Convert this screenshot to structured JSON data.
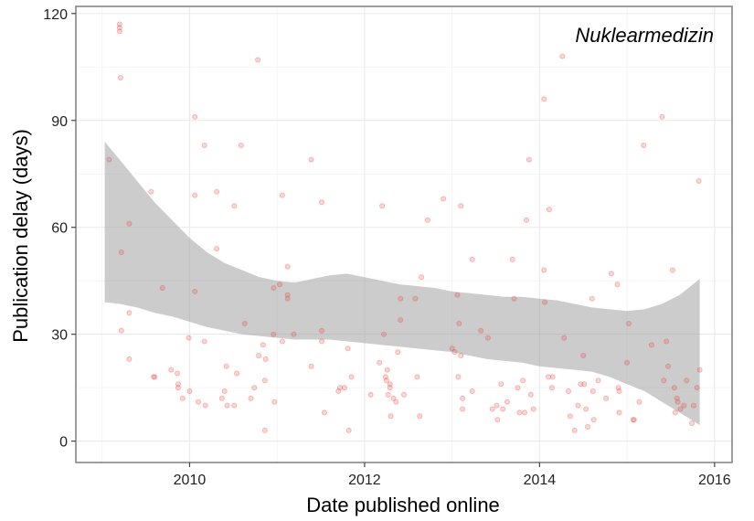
{
  "chart_data": {
    "type": "scatter",
    "title": "Nuklearmedizin",
    "xlabel": "Date published online",
    "ylabel": "Publication delay (days)",
    "xlim": [
      2008.7,
      2016.2
    ],
    "ylim": [
      -6,
      122
    ],
    "x_ticks": [
      2010,
      2012,
      2014,
      2016
    ],
    "x_tick_labels": [
      "2010",
      "2012",
      "2014",
      "2016"
    ],
    "y_ticks": [
      0,
      30,
      60,
      90,
      120
    ],
    "y_tick_labels": [
      "0",
      "30",
      "60",
      "90",
      "120"
    ],
    "grid": true,
    "point_color": "#e8403a",
    "band_color": "#999999",
    "points": [
      {
        "x": 2009.08,
        "y": 79
      },
      {
        "x": 2009.2,
        "y": 117
      },
      {
        "x": 2009.2,
        "y": 116
      },
      {
        "x": 2009.2,
        "y": 115
      },
      {
        "x": 2009.21,
        "y": 102
      },
      {
        "x": 2009.22,
        "y": 53
      },
      {
        "x": 2009.22,
        "y": 31
      },
      {
        "x": 2009.31,
        "y": 61
      },
      {
        "x": 2009.31,
        "y": 36
      },
      {
        "x": 2009.31,
        "y": 23
      },
      {
        "x": 2009.56,
        "y": 70
      },
      {
        "x": 2009.59,
        "y": 18
      },
      {
        "x": 2009.6,
        "y": 18
      },
      {
        "x": 2009.69,
        "y": 43
      },
      {
        "x": 2009.79,
        "y": 20
      },
      {
        "x": 2009.86,
        "y": 19
      },
      {
        "x": 2009.87,
        "y": 16
      },
      {
        "x": 2009.87,
        "y": 15
      },
      {
        "x": 2009.92,
        "y": 12
      },
      {
        "x": 2009.99,
        "y": 29
      },
      {
        "x": 2010.0,
        "y": 14
      },
      {
        "x": 2010.06,
        "y": 91
      },
      {
        "x": 2010.06,
        "y": 69
      },
      {
        "x": 2010.06,
        "y": 42
      },
      {
        "x": 2010.1,
        "y": 11
      },
      {
        "x": 2010.17,
        "y": 83
      },
      {
        "x": 2010.17,
        "y": 28
      },
      {
        "x": 2010.18,
        "y": 10
      },
      {
        "x": 2010.31,
        "y": 70
      },
      {
        "x": 2010.31,
        "y": 54
      },
      {
        "x": 2010.37,
        "y": 12
      },
      {
        "x": 2010.4,
        "y": 14
      },
      {
        "x": 2010.42,
        "y": 21
      },
      {
        "x": 2010.43,
        "y": 10
      },
      {
        "x": 2010.51,
        "y": 66
      },
      {
        "x": 2010.51,
        "y": 10
      },
      {
        "x": 2010.54,
        "y": 19
      },
      {
        "x": 2010.59,
        "y": 83
      },
      {
        "x": 2010.63,
        "y": 33
      },
      {
        "x": 2010.7,
        "y": 12
      },
      {
        "x": 2010.74,
        "y": 15
      },
      {
        "x": 2010.78,
        "y": 107
      },
      {
        "x": 2010.79,
        "y": 24
      },
      {
        "x": 2010.84,
        "y": 27
      },
      {
        "x": 2010.86,
        "y": 3
      },
      {
        "x": 2010.86,
        "y": 17
      },
      {
        "x": 2010.87,
        "y": 23
      },
      {
        "x": 2010.96,
        "y": 43
      },
      {
        "x": 2010.96,
        "y": 30
      },
      {
        "x": 2010.97,
        "y": 11
      },
      {
        "x": 2011.03,
        "y": 44
      },
      {
        "x": 2011.06,
        "y": 69
      },
      {
        "x": 2011.06,
        "y": 28
      },
      {
        "x": 2011.12,
        "y": 49
      },
      {
        "x": 2011.12,
        "y": 41
      },
      {
        "x": 2011.12,
        "y": 40
      },
      {
        "x": 2011.19,
        "y": 30
      },
      {
        "x": 2011.39,
        "y": 79
      },
      {
        "x": 2011.39,
        "y": 21
      },
      {
        "x": 2011.51,
        "y": 67
      },
      {
        "x": 2011.51,
        "y": 31
      },
      {
        "x": 2011.51,
        "y": 28
      },
      {
        "x": 2011.54,
        "y": 8
      },
      {
        "x": 2011.7,
        "y": 14
      },
      {
        "x": 2011.72,
        "y": 15
      },
      {
        "x": 2011.77,
        "y": 15
      },
      {
        "x": 2011.81,
        "y": 26
      },
      {
        "x": 2011.82,
        "y": 3
      },
      {
        "x": 2011.85,
        "y": 18
      },
      {
        "x": 2012.07,
        "y": 13
      },
      {
        "x": 2012.17,
        "y": 22
      },
      {
        "x": 2012.2,
        "y": 66
      },
      {
        "x": 2012.22,
        "y": 30
      },
      {
        "x": 2012.24,
        "y": 18
      },
      {
        "x": 2012.25,
        "y": 17
      },
      {
        "x": 2012.26,
        "y": 20
      },
      {
        "x": 2012.27,
        "y": 13
      },
      {
        "x": 2012.29,
        "y": 16
      },
      {
        "x": 2012.29,
        "y": 15
      },
      {
        "x": 2012.3,
        "y": 7
      },
      {
        "x": 2012.33,
        "y": 12
      },
      {
        "x": 2012.36,
        "y": 11
      },
      {
        "x": 2012.38,
        "y": 25
      },
      {
        "x": 2012.41,
        "y": 34
      },
      {
        "x": 2012.41,
        "y": 40
      },
      {
        "x": 2012.45,
        "y": 13
      },
      {
        "x": 2012.58,
        "y": 40
      },
      {
        "x": 2012.6,
        "y": 18
      },
      {
        "x": 2012.63,
        "y": 7
      },
      {
        "x": 2012.65,
        "y": 46
      },
      {
        "x": 2012.72,
        "y": 62
      },
      {
        "x": 2012.9,
        "y": 68
      },
      {
        "x": 2013.0,
        "y": 26
      },
      {
        "x": 2013.03,
        "y": 25
      },
      {
        "x": 2013.06,
        "y": 41
      },
      {
        "x": 2013.07,
        "y": 18
      },
      {
        "x": 2013.08,
        "y": 33
      },
      {
        "x": 2013.1,
        "y": 66
      },
      {
        "x": 2013.1,
        "y": 24
      },
      {
        "x": 2013.12,
        "y": 12
      },
      {
        "x": 2013.12,
        "y": 9
      },
      {
        "x": 2013.23,
        "y": 51
      },
      {
        "x": 2013.23,
        "y": 14
      },
      {
        "x": 2013.33,
        "y": 31
      },
      {
        "x": 2013.41,
        "y": 29
      },
      {
        "x": 2013.46,
        "y": 9
      },
      {
        "x": 2013.51,
        "y": 10
      },
      {
        "x": 2013.52,
        "y": 6
      },
      {
        "x": 2013.56,
        "y": 16
      },
      {
        "x": 2013.58,
        "y": 9
      },
      {
        "x": 2013.63,
        "y": 11
      },
      {
        "x": 2013.69,
        "y": 51
      },
      {
        "x": 2013.71,
        "y": 40
      },
      {
        "x": 2013.75,
        "y": 15
      },
      {
        "x": 2013.77,
        "y": 8
      },
      {
        "x": 2013.81,
        "y": 17
      },
      {
        "x": 2013.83,
        "y": 8
      },
      {
        "x": 2013.85,
        "y": 62
      },
      {
        "x": 2013.88,
        "y": 79
      },
      {
        "x": 2013.9,
        "y": 13
      },
      {
        "x": 2013.93,
        "y": 9
      },
      {
        "x": 2014.05,
        "y": 96
      },
      {
        "x": 2014.05,
        "y": 48
      },
      {
        "x": 2014.06,
        "y": 39
      },
      {
        "x": 2014.1,
        "y": 18
      },
      {
        "x": 2014.11,
        "y": 65
      },
      {
        "x": 2014.15,
        "y": 18
      },
      {
        "x": 2014.14,
        "y": 15
      },
      {
        "x": 2014.26,
        "y": 108
      },
      {
        "x": 2014.28,
        "y": 29
      },
      {
        "x": 2014.33,
        "y": 14
      },
      {
        "x": 2014.35,
        "y": 7
      },
      {
        "x": 2014.4,
        "y": 3
      },
      {
        "x": 2014.44,
        "y": 10
      },
      {
        "x": 2014.47,
        "y": 16
      },
      {
        "x": 2014.5,
        "y": 24
      },
      {
        "x": 2014.51,
        "y": 16
      },
      {
        "x": 2014.53,
        "y": 9
      },
      {
        "x": 2014.55,
        "y": 4
      },
      {
        "x": 2014.6,
        "y": 40
      },
      {
        "x": 2014.61,
        "y": 14
      },
      {
        "x": 2014.62,
        "y": 6
      },
      {
        "x": 2014.67,
        "y": 17
      },
      {
        "x": 2014.76,
        "y": 12
      },
      {
        "x": 2014.82,
        "y": 47
      },
      {
        "x": 2014.89,
        "y": 44
      },
      {
        "x": 2014.9,
        "y": 15
      },
      {
        "x": 2014.91,
        "y": 14
      },
      {
        "x": 2014.91,
        "y": 8
      },
      {
        "x": 2015.0,
        "y": 22
      },
      {
        "x": 2015.02,
        "y": 33
      },
      {
        "x": 2015.07,
        "y": 6
      },
      {
        "x": 2015.08,
        "y": 6
      },
      {
        "x": 2015.14,
        "y": 11
      },
      {
        "x": 2015.19,
        "y": 83
      },
      {
        "x": 2015.28,
        "y": 27
      },
      {
        "x": 2015.4,
        "y": 91
      },
      {
        "x": 2015.42,
        "y": 17
      },
      {
        "x": 2015.45,
        "y": 28
      },
      {
        "x": 2015.47,
        "y": 21
      },
      {
        "x": 2015.52,
        "y": 48
      },
      {
        "x": 2015.54,
        "y": 15
      },
      {
        "x": 2015.55,
        "y": 8
      },
      {
        "x": 2015.57,
        "y": 12
      },
      {
        "x": 2015.58,
        "y": 11
      },
      {
        "x": 2015.61,
        "y": 9
      },
      {
        "x": 2015.65,
        "y": 10
      },
      {
        "x": 2015.68,
        "y": 17
      },
      {
        "x": 2015.74,
        "y": 5
      },
      {
        "x": 2015.76,
        "y": 10
      },
      {
        "x": 2015.8,
        "y": 15
      },
      {
        "x": 2015.82,
        "y": 73
      },
      {
        "x": 2015.83,
        "y": 20
      }
    ],
    "band_upper": [
      {
        "x": 2009.03,
        "y": 84
      },
      {
        "x": 2009.2,
        "y": 79
      },
      {
        "x": 2009.4,
        "y": 73
      },
      {
        "x": 2009.6,
        "y": 67
      },
      {
        "x": 2009.8,
        "y": 62
      },
      {
        "x": 2010.0,
        "y": 57
      },
      {
        "x": 2010.2,
        "y": 53
      },
      {
        "x": 2010.4,
        "y": 50
      },
      {
        "x": 2010.6,
        "y": 48
      },
      {
        "x": 2010.8,
        "y": 46
      },
      {
        "x": 2011.0,
        "y": 45
      },
      {
        "x": 2011.2,
        "y": 44.5
      },
      {
        "x": 2011.4,
        "y": 45.5
      },
      {
        "x": 2011.6,
        "y": 46.5
      },
      {
        "x": 2011.8,
        "y": 47
      },
      {
        "x": 2012.0,
        "y": 46
      },
      {
        "x": 2012.2,
        "y": 45
      },
      {
        "x": 2012.4,
        "y": 44
      },
      {
        "x": 2012.6,
        "y": 43.5
      },
      {
        "x": 2012.8,
        "y": 43
      },
      {
        "x": 2013.0,
        "y": 42
      },
      {
        "x": 2013.2,
        "y": 41.5
      },
      {
        "x": 2013.4,
        "y": 41
      },
      {
        "x": 2013.6,
        "y": 40.5
      },
      {
        "x": 2013.8,
        "y": 40.5
      },
      {
        "x": 2014.0,
        "y": 40
      },
      {
        "x": 2014.2,
        "y": 39.5
      },
      {
        "x": 2014.4,
        "y": 38.5
      },
      {
        "x": 2014.6,
        "y": 37.5
      },
      {
        "x": 2014.8,
        "y": 37
      },
      {
        "x": 2015.0,
        "y": 36.5
      },
      {
        "x": 2015.2,
        "y": 37
      },
      {
        "x": 2015.4,
        "y": 38.5
      },
      {
        "x": 2015.6,
        "y": 41
      },
      {
        "x": 2015.83,
        "y": 45.5
      }
    ],
    "band_lower": [
      {
        "x": 2009.03,
        "y": 39
      },
      {
        "x": 2009.2,
        "y": 38.5
      },
      {
        "x": 2009.4,
        "y": 37.5
      },
      {
        "x": 2009.6,
        "y": 36
      },
      {
        "x": 2009.8,
        "y": 35
      },
      {
        "x": 2010.0,
        "y": 33.5
      },
      {
        "x": 2010.2,
        "y": 32
      },
      {
        "x": 2010.4,
        "y": 31
      },
      {
        "x": 2010.6,
        "y": 30
      },
      {
        "x": 2010.8,
        "y": 29.5
      },
      {
        "x": 2011.0,
        "y": 29
      },
      {
        "x": 2011.2,
        "y": 28.5
      },
      {
        "x": 2011.4,
        "y": 28.5
      },
      {
        "x": 2011.6,
        "y": 28.5
      },
      {
        "x": 2011.8,
        "y": 28
      },
      {
        "x": 2012.0,
        "y": 27.5
      },
      {
        "x": 2012.2,
        "y": 27
      },
      {
        "x": 2012.4,
        "y": 26.5
      },
      {
        "x": 2012.6,
        "y": 26
      },
      {
        "x": 2012.8,
        "y": 25.5
      },
      {
        "x": 2013.0,
        "y": 25
      },
      {
        "x": 2013.2,
        "y": 24
      },
      {
        "x": 2013.4,
        "y": 23
      },
      {
        "x": 2013.6,
        "y": 22.5
      },
      {
        "x": 2013.8,
        "y": 22
      },
      {
        "x": 2014.0,
        "y": 21
      },
      {
        "x": 2014.2,
        "y": 20.5
      },
      {
        "x": 2014.4,
        "y": 20
      },
      {
        "x": 2014.6,
        "y": 19.5
      },
      {
        "x": 2014.8,
        "y": 18
      },
      {
        "x": 2015.0,
        "y": 16
      },
      {
        "x": 2015.2,
        "y": 14
      },
      {
        "x": 2015.4,
        "y": 11
      },
      {
        "x": 2015.6,
        "y": 8
      },
      {
        "x": 2015.83,
        "y": 4.5
      }
    ]
  }
}
